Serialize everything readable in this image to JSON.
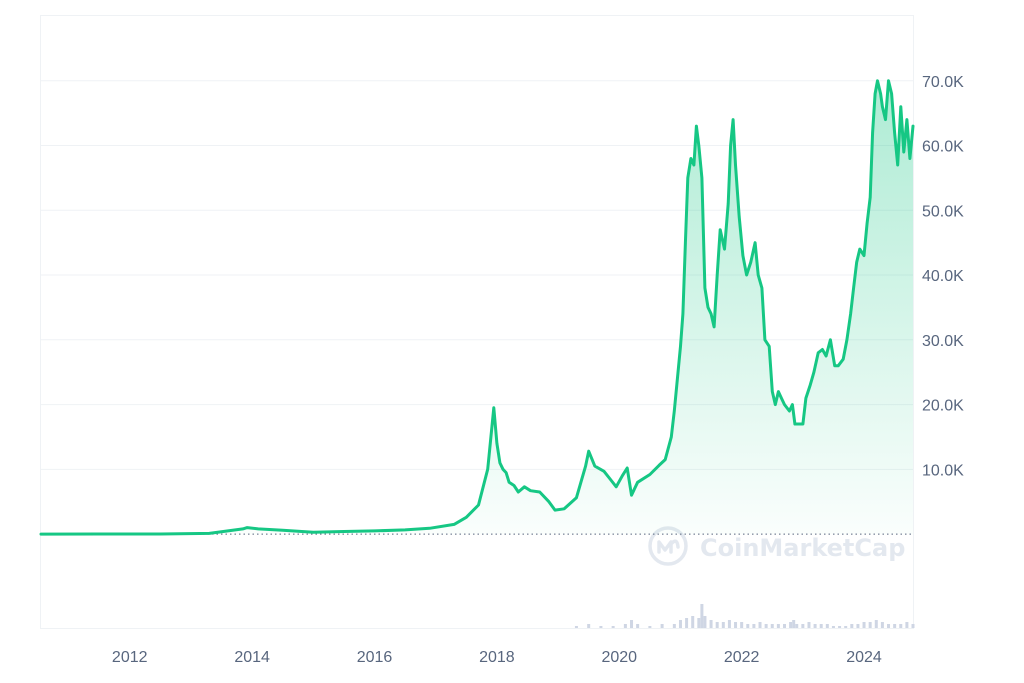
{
  "chart_data": {
    "type": "area",
    "title": "",
    "xlabel": "",
    "ylabel": "",
    "xlim": [
      2010.55,
      2024.8
    ],
    "ylim": [
      -14500,
      80000
    ],
    "grid": "horizontal",
    "baseline": 0,
    "y_ticks": [
      {
        "value": 10000,
        "label": "10.0K"
      },
      {
        "value": 20000,
        "label": "20.0K"
      },
      {
        "value": 30000,
        "label": "30.0K"
      },
      {
        "value": 40000,
        "label": "40.0K"
      },
      {
        "value": 50000,
        "label": "50.0K"
      },
      {
        "value": 60000,
        "label": "60.0K"
      },
      {
        "value": 70000,
        "label": "70.0K"
      }
    ],
    "x_ticks": [
      {
        "value": 2012,
        "label": "2012"
      },
      {
        "value": 2014,
        "label": "2014"
      },
      {
        "value": 2016,
        "label": "2016"
      },
      {
        "value": 2018,
        "label": "2018"
      },
      {
        "value": 2020,
        "label": "2020"
      },
      {
        "value": 2022,
        "label": "2022"
      },
      {
        "value": 2024,
        "label": "2024"
      }
    ],
    "series": [
      {
        "color": "#16c784",
        "x": [
          2010.55,
          2011.5,
          2012.5,
          2013.3,
          2013.85,
          2013.92,
          2014.1,
          2014.5,
          2015.0,
          2015.5,
          2016.0,
          2016.5,
          2016.9,
          2017.3,
          2017.5,
          2017.7,
          2017.85,
          2017.95,
          2018.0,
          2018.05,
          2018.1,
          2018.15,
          2018.2,
          2018.28,
          2018.35,
          2018.45,
          2018.55,
          2018.7,
          2018.85,
          2018.95,
          2019.1,
          2019.3,
          2019.45,
          2019.5,
          2019.6,
          2019.75,
          2019.85,
          2019.95,
          2020.05,
          2020.13,
          2020.2,
          2020.3,
          2020.5,
          2020.65,
          2020.75,
          2020.85,
          2020.9,
          2020.95,
          2021.0,
          2021.04,
          2021.08,
          2021.12,
          2021.17,
          2021.22,
          2021.26,
          2021.3,
          2021.35,
          2021.4,
          2021.45,
          2021.5,
          2021.55,
          2021.6,
          2021.65,
          2021.72,
          2021.78,
          2021.82,
          2021.86,
          2021.9,
          2021.96,
          2022.02,
          2022.08,
          2022.15,
          2022.22,
          2022.27,
          2022.33,
          2022.38,
          2022.45,
          2022.5,
          2022.55,
          2022.6,
          2022.65,
          2022.7,
          2022.78,
          2022.83,
          2022.87,
          2022.92,
          2023.0,
          2023.05,
          2023.12,
          2023.18,
          2023.25,
          2023.32,
          2023.38,
          2023.45,
          2023.52,
          2023.58,
          2023.66,
          2023.72,
          2023.78,
          2023.83,
          2023.88,
          2023.93,
          2024.0,
          2024.05,
          2024.1,
          2024.14,
          2024.18,
          2024.22,
          2024.27,
          2024.3,
          2024.35,
          2024.4,
          2024.45,
          2024.5,
          2024.55,
          2024.6,
          2024.65,
          2024.7,
          2024.75,
          2024.8
        ],
        "values": [
          5,
          10,
          8,
          100,
          800,
          1000,
          800,
          600,
          300,
          400,
          500,
          650,
          900,
          1500,
          2600,
          4500,
          10000,
          19500,
          14000,
          11000,
          10000,
          9500,
          8000,
          7500,
          6500,
          7300,
          6700,
          6500,
          5000,
          3700,
          3900,
          5600,
          10500,
          12800,
          10500,
          9700,
          8500,
          7300,
          9000,
          10200,
          6000,
          8000,
          9200,
          10600,
          11500,
          15000,
          19000,
          24000,
          29000,
          34000,
          45000,
          55000,
          58000,
          57000,
          63000,
          60000,
          55000,
          38000,
          35000,
          34000,
          32000,
          40000,
          47000,
          44000,
          51000,
          60000,
          64000,
          57000,
          49000,
          43000,
          40000,
          42000,
          45000,
          40000,
          38000,
          30000,
          29000,
          22000,
          20000,
          22000,
          21000,
          20000,
          19000,
          20000,
          17000,
          17000,
          17000,
          21000,
          23000,
          25000,
          28000,
          28500,
          27500,
          30000,
          26000,
          26000,
          27000,
          30000,
          34000,
          38000,
          42000,
          44000,
          43000,
          48000,
          52000,
          62000,
          68000,
          70000,
          68000,
          66000,
          64000,
          70000,
          68000,
          62000,
          57000,
          66000,
          59000,
          64000,
          58000,
          63000
        ]
      }
    ],
    "volume": {
      "color": "#cfd6e4",
      "x": [
        2019.3,
        2019.5,
        2019.7,
        2019.9,
        2020.1,
        2020.2,
        2020.3,
        2020.5,
        2020.7,
        2020.9,
        2021.0,
        2021.1,
        2021.2,
        2021.3,
        2021.35,
        2021.4,
        2021.5,
        2021.6,
        2021.7,
        2021.8,
        2021.9,
        2022.0,
        2022.1,
        2022.2,
        2022.3,
        2022.4,
        2022.5,
        2022.6,
        2022.7,
        2022.8,
        2022.85,
        2022.9,
        2023.0,
        2023.1,
        2023.2,
        2023.3,
        2023.4,
        2023.5,
        2023.6,
        2023.7,
        2023.8,
        2023.9,
        2024.0,
        2024.1,
        2024.2,
        2024.3,
        2024.4,
        2024.5,
        2024.6,
        2024.7,
        2024.8
      ],
      "values": [
        1,
        2,
        1,
        1,
        2,
        4,
        2,
        1,
        2,
        2,
        4,
        5,
        6,
        5,
        12,
        6,
        4,
        3,
        3,
        4,
        3,
        3,
        2,
        2,
        3,
        2,
        2,
        2,
        2,
        3,
        4,
        2,
        2,
        3,
        2,
        2,
        2,
        1,
        1,
        1,
        2,
        2,
        3,
        3,
        4,
        3,
        2,
        2,
        2,
        3,
        2
      ]
    },
    "watermark": "CoinMarketCap"
  }
}
